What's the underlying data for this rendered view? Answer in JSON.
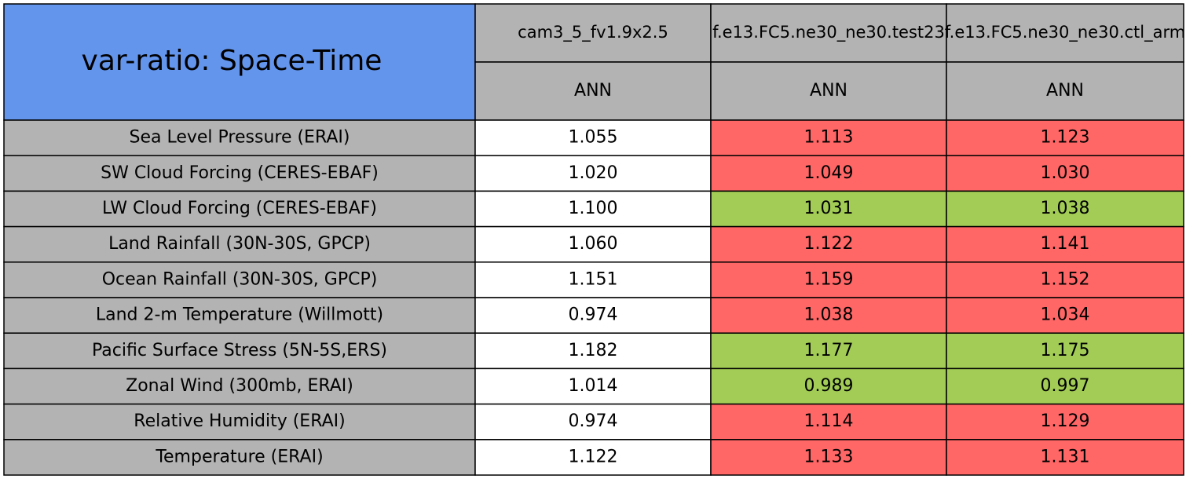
{
  "table": {
    "title": "var-ratio: Space-Time",
    "title_color": "#6495ed",
    "header_color": "#b3b3b3",
    "columns": [
      {
        "name": "cam3_5_fv1.9x2.5",
        "season": "ANN"
      },
      {
        "name": "f.e13.FC5.ne30_ne30.test23",
        "season": "ANN"
      },
      {
        "name": "f.e13.FC5.ne30_ne30.ctl_arm",
        "season": "ANN"
      }
    ],
    "rows": [
      {
        "label": "Sea Level Pressure (ERAI)",
        "values": [
          "1.055",
          "1.113",
          "1.123"
        ],
        "colors": [
          "#ffffff",
          "#ff6666",
          "#ff6666"
        ]
      },
      {
        "label": "SW Cloud Forcing (CERES-EBAF)",
        "values": [
          "1.020",
          "1.049",
          "1.030"
        ],
        "colors": [
          "#ffffff",
          "#ff6666",
          "#ff6666"
        ]
      },
      {
        "label": "LW Cloud Forcing (CERES-EBAF)",
        "values": [
          "1.100",
          "1.031",
          "1.038"
        ],
        "colors": [
          "#ffffff",
          "#a2cc55",
          "#a2cc55"
        ]
      },
      {
        "label": "Land Rainfall (30N-30S, GPCP)",
        "values": [
          "1.060",
          "1.122",
          "1.141"
        ],
        "colors": [
          "#ffffff",
          "#ff6666",
          "#ff6666"
        ]
      },
      {
        "label": "Ocean Rainfall (30N-30S, GPCP)",
        "values": [
          "1.151",
          "1.159",
          "1.152"
        ],
        "colors": [
          "#ffffff",
          "#ff6666",
          "#ff6666"
        ]
      },
      {
        "label": "Land 2-m Temperature (Willmott)",
        "values": [
          "0.974",
          "1.038",
          "1.034"
        ],
        "colors": [
          "#ffffff",
          "#ff6666",
          "#ff6666"
        ]
      },
      {
        "label": "Pacific Surface Stress (5N-5S,ERS)",
        "values": [
          "1.182",
          "1.177",
          "1.175"
        ],
        "colors": [
          "#ffffff",
          "#a2cc55",
          "#a2cc55"
        ]
      },
      {
        "label": "Zonal Wind (300mb, ERAI)",
        "values": [
          "1.014",
          "0.989",
          "0.997"
        ],
        "colors": [
          "#ffffff",
          "#a2cc55",
          "#a2cc55"
        ]
      },
      {
        "label": "Relative Humidity (ERAI)",
        "values": [
          "0.974",
          "1.114",
          "1.129"
        ],
        "colors": [
          "#ffffff",
          "#ff6666",
          "#ff6666"
        ]
      },
      {
        "label": "Temperature (ERAI)",
        "values": [
          "1.122",
          "1.133",
          "1.131"
        ],
        "colors": [
          "#ffffff",
          "#ff6666",
          "#ff6666"
        ]
      }
    ]
  }
}
